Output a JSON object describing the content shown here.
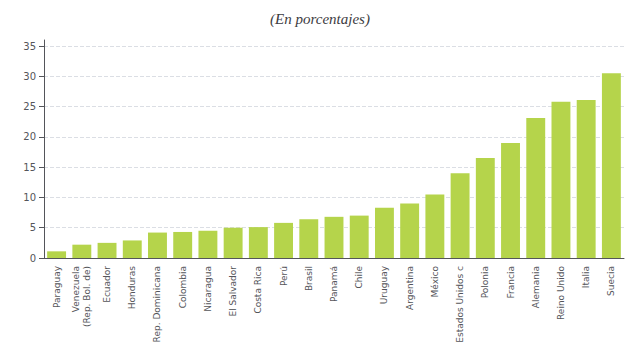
{
  "chart_data": {
    "type": "bar",
    "title": "(En porcentajes)",
    "categories": [
      "Paraguay",
      "Venezuela\n(Rep. Bol. de)",
      "Ecuador",
      "Honduras",
      "Rep. Dominicana",
      "Colombia",
      "Nicaragua",
      "El Salvador",
      "Costa Rica",
      "Perú",
      "Brasil",
      "Panamá",
      "Chile",
      "Uruguay",
      "Argentina",
      "México",
      "Estados Unidos c",
      "Polonia",
      "Francia",
      "Alemania",
      "Reino Unido",
      "Italia",
      "Suecia"
    ],
    "values": [
      1.1,
      2.2,
      2.5,
      2.9,
      4.2,
      4.3,
      4.5,
      5.0,
      5.1,
      5.8,
      6.4,
      6.8,
      7.0,
      8.3,
      9.0,
      10.5,
      14.0,
      16.5,
      19.0,
      23.1,
      25.8,
      26.1,
      30.5
    ],
    "color": "#b5d44b",
    "ylim": [
      0,
      36
    ],
    "yticks": [
      0,
      5,
      10,
      15,
      20,
      25,
      30,
      35
    ],
    "grid": true
  }
}
